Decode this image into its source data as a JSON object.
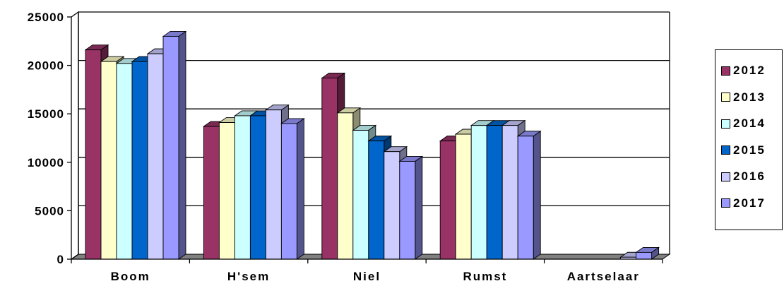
{
  "chart_data": {
    "type": "bar",
    "categories": [
      "Boom",
      "H'sem",
      "Niel",
      "Rumst",
      "Aartselaar"
    ],
    "series": [
      {
        "name": "2012",
        "color": "#993366",
        "values": [
          21600,
          13700,
          18700,
          12200,
          0
        ]
      },
      {
        "name": "2013",
        "color": "#FFFFCC",
        "values": [
          20400,
          14100,
          15100,
          12900,
          0
        ]
      },
      {
        "name": "2014",
        "color": "#CCFFFF",
        "values": [
          20200,
          14800,
          13300,
          13800,
          0
        ]
      },
      {
        "name": "2015",
        "color": "#0066CC",
        "values": [
          20400,
          14800,
          12200,
          13800,
          0
        ]
      },
      {
        "name": "2016",
        "color": "#CCCCFF",
        "values": [
          21200,
          15400,
          11100,
          13800,
          200
        ]
      },
      {
        "name": "2017",
        "color": "#9999FF",
        "values": [
          23000,
          14000,
          10100,
          12700,
          700
        ]
      }
    ],
    "yticks": [
      "0",
      "5000",
      "10000",
      "15000",
      "20000",
      "25000"
    ],
    "ylim": [
      0,
      25000
    ],
    "grid": true,
    "legend": "right"
  }
}
